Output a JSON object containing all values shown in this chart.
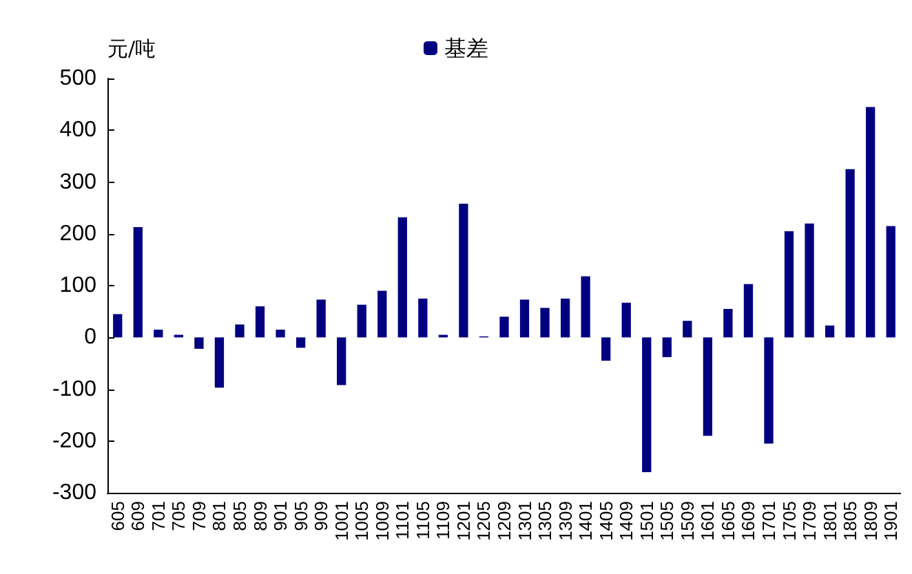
{
  "chart_data": {
    "type": "bar",
    "ylabel": "元/吨",
    "legend": "top",
    "grid": false,
    "categories": [
      "605",
      "609",
      "701",
      "705",
      "709",
      "801",
      "805",
      "809",
      "901",
      "905",
      "909",
      "1001",
      "1005",
      "1009",
      "1101",
      "1105",
      "1109",
      "1201",
      "1205",
      "1209",
      "1301",
      "1305",
      "1309",
      "1401",
      "1405",
      "1409",
      "1501",
      "1505",
      "1509",
      "1601",
      "1605",
      "1609",
      "1701",
      "1705",
      "1709",
      "1801",
      "1805",
      "1809",
      "1901"
    ],
    "series": [
      {
        "name": "基差",
        "color": "#000080",
        "values": [
          45,
          213,
          15,
          5,
          -22,
          -97,
          25,
          60,
          15,
          -20,
          73,
          -92,
          63,
          90,
          232,
          75,
          5,
          258,
          2,
          40,
          73,
          57,
          75,
          118,
          -45,
          67,
          -260,
          -38,
          32,
          -190,
          55,
          103,
          -205,
          205,
          220,
          23,
          325,
          445,
          215
        ]
      }
    ],
    "ylim": [
      -300,
      500
    ],
    "yticks": [
      -300,
      -200,
      -100,
      0,
      100,
      200,
      300,
      400,
      500
    ]
  }
}
